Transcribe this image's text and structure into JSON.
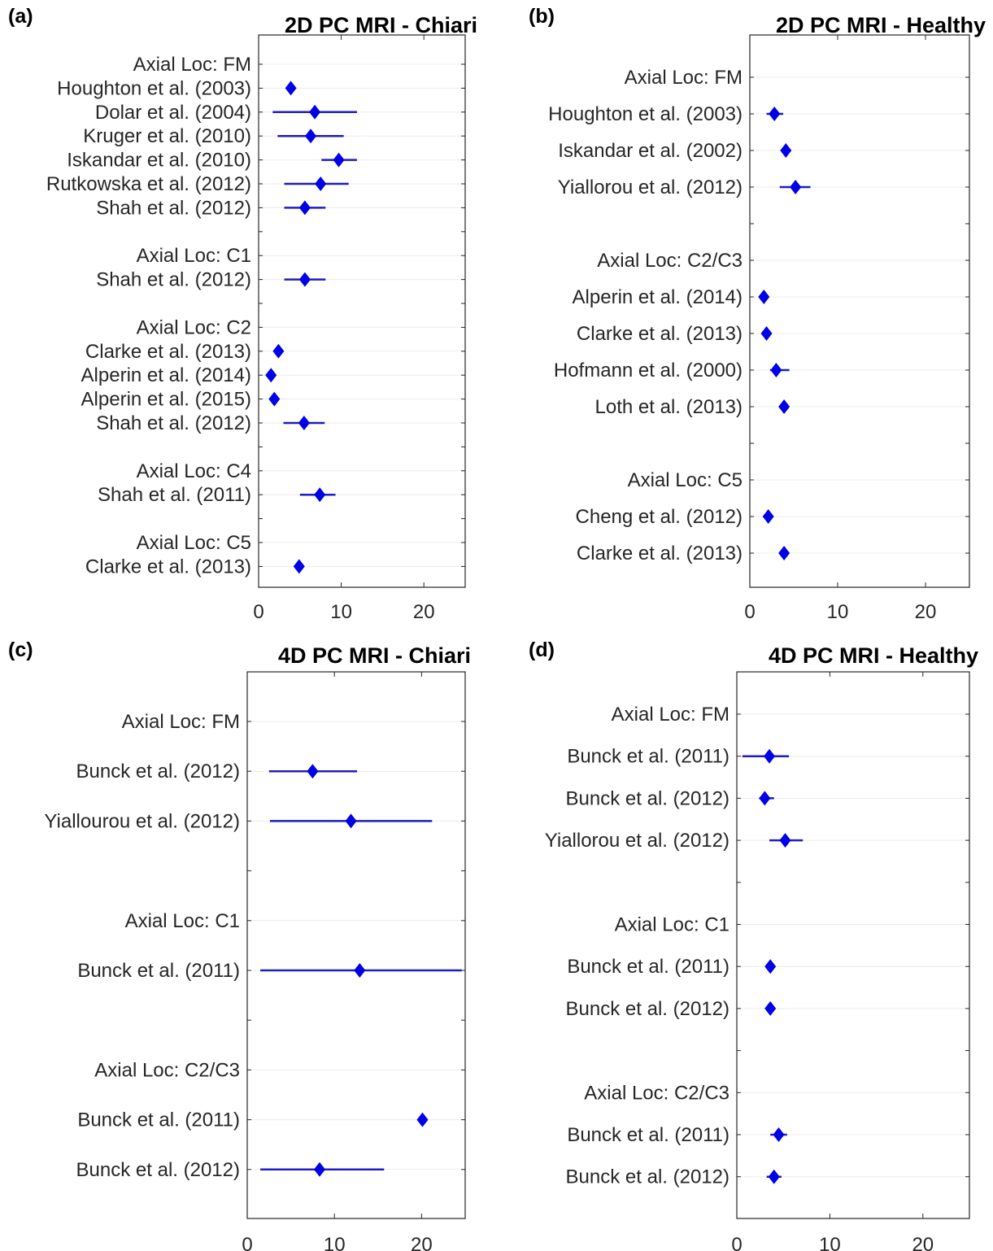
{
  "chart_data": [
    {
      "type": "forest",
      "panel_label": "(a)",
      "title": "2D PC MRI - Chiari",
      "xlim": [
        0,
        25
      ],
      "xticks": [
        "0",
        "10",
        "20"
      ],
      "grid": "horizontal",
      "marker_color": "#0000e6",
      "line_color": "#1d1dc4",
      "rows": [
        {
          "label": "Axial Loc: FM",
          "header": true
        },
        {
          "label": "Houghton et al. (2003)",
          "value": 3.9,
          "lo": 3.9,
          "hi": 3.9
        },
        {
          "label": "Dolar et al. (2004)",
          "value": 6.8,
          "lo": 1.7,
          "hi": 11.9
        },
        {
          "label": "Kruger et al. (2010)",
          "value": 6.3,
          "lo": 2.3,
          "hi": 10.3
        },
        {
          "label": "Iskandar et al. (2010)",
          "value": 9.7,
          "lo": 7.6,
          "hi": 11.9
        },
        {
          "label": "Rutkowska et al. (2012)",
          "value": 7.5,
          "lo": 3.1,
          "hi": 10.9
        },
        {
          "label": "Shah et al. (2012)",
          "value": 5.6,
          "lo": 3.1,
          "hi": 8.1
        },
        {
          "label": "",
          "spacer": true
        },
        {
          "label": "Axial Loc: C1",
          "header": true
        },
        {
          "label": "Shah et al. (2012)",
          "value": 5.6,
          "lo": 3.1,
          "hi": 8.1
        },
        {
          "label": "",
          "spacer": true
        },
        {
          "label": "Axial Loc: C2",
          "header": true
        },
        {
          "label": "Clarke et al. (2013)",
          "value": 2.4,
          "lo": 2.4,
          "hi": 2.4
        },
        {
          "label": "Alperin et al. (2014)",
          "value": 1.5,
          "lo": 1.5,
          "hi": 1.5
        },
        {
          "label": "Alperin et al. (2015)",
          "value": 1.9,
          "lo": 1.9,
          "hi": 1.9
        },
        {
          "label": "Shah et al. (2012)",
          "value": 5.5,
          "lo": 3.0,
          "hi": 8.0
        },
        {
          "label": "",
          "spacer": true
        },
        {
          "label": "Axial Loc: C4",
          "header": true
        },
        {
          "label": "Shah et al. (2011)",
          "value": 7.4,
          "lo": 5.0,
          "hi": 9.3
        },
        {
          "label": "",
          "spacer": true
        },
        {
          "label": "Axial Loc: C5",
          "header": true
        },
        {
          "label": "Clarke et al. (2013)",
          "value": 4.9,
          "lo": 4.9,
          "hi": 4.9
        }
      ]
    },
    {
      "type": "forest",
      "panel_label": "(b)",
      "title": "2D PC MRI - Healthy",
      "xlim": [
        0,
        25
      ],
      "xticks": [
        "0",
        "10",
        "20"
      ],
      "grid": "horizontal",
      "marker_color": "#0000e6",
      "line_color": "#1d1dc4",
      "rows": [
        {
          "label": "Axial Loc: FM",
          "header": true
        },
        {
          "label": "Houghton et al. (2003)",
          "value": 2.8,
          "lo": 1.9,
          "hi": 3.8
        },
        {
          "label": "Iskandar et al. (2002)",
          "value": 4.1,
          "lo": 4.1,
          "hi": 4.1
        },
        {
          "label": "Yiallorou et al. (2012)",
          "value": 5.2,
          "lo": 3.4,
          "hi": 6.9
        },
        {
          "label": "",
          "spacer": true
        },
        {
          "label": "Axial Loc: C2/C3",
          "header": true
        },
        {
          "label": "Alperin et al. (2014)",
          "value": 1.6,
          "lo": 1.6,
          "hi": 1.6
        },
        {
          "label": "Clarke et al. (2013)",
          "value": 1.9,
          "lo": 1.9,
          "hi": 1.9
        },
        {
          "label": "Hofmann et al. (2000)",
          "value": 3.0,
          "lo": 2.3,
          "hi": 4.5
        },
        {
          "label": "Loth et al. (2013)",
          "value": 3.9,
          "lo": 3.9,
          "hi": 3.9
        },
        {
          "label": "",
          "spacer": true
        },
        {
          "label": "Axial Loc: C5",
          "header": true
        },
        {
          "label": "Cheng et al. (2012)",
          "value": 2.1,
          "lo": 2.1,
          "hi": 2.1
        },
        {
          "label": "Clarke et al. (2013)",
          "value": 3.9,
          "lo": 3.9,
          "hi": 3.9
        }
      ]
    },
    {
      "type": "forest",
      "panel_label": "(c)",
      "title": "4D PC MRI - Chiari",
      "xlim": [
        0,
        25
      ],
      "xticks": [
        "0",
        "10",
        "20"
      ],
      "grid": "horizontal",
      "marker_color": "#0000e6",
      "line_color": "#1d1dc4",
      "rows": [
        {
          "label": "Axial Loc: FM",
          "header": true
        },
        {
          "label": "Bunck et al. (2012)",
          "value": 7.5,
          "lo": 2.5,
          "hi": 12.6
        },
        {
          "label": "Yiallourou et al. (2012)",
          "value": 11.9,
          "lo": 2.6,
          "hi": 21.2
        },
        {
          "label": "",
          "spacer": true
        },
        {
          "label": "Axial Loc: C1",
          "header": true
        },
        {
          "label": "Bunck et al. (2011)",
          "value": 12.9,
          "lo": 1.5,
          "hi": 24.6
        },
        {
          "label": "",
          "spacer": true
        },
        {
          "label": "Axial Loc: C2/C3",
          "header": true
        },
        {
          "label": "Bunck et al. (2011)",
          "value": 20.1,
          "lo": 20.1,
          "hi": 20.1
        },
        {
          "label": "Bunck et al. (2012)",
          "value": 8.3,
          "lo": 1.5,
          "hi": 15.7
        }
      ]
    },
    {
      "type": "forest",
      "panel_label": "(d)",
      "title": "4D PC MRI - Healthy",
      "xlim": [
        0,
        25
      ],
      "xticks": [
        "0",
        "10",
        "20"
      ],
      "grid": "horizontal",
      "marker_color": "#0000e6",
      "line_color": "#1d1dc4",
      "rows": [
        {
          "label": "Axial Loc: FM",
          "header": true
        },
        {
          "label": "Bunck et al. (2011)",
          "value": 3.5,
          "lo": 0.6,
          "hi": 5.6
        },
        {
          "label": "Bunck et al. (2012)",
          "value": 3.0,
          "lo": 2.4,
          "hi": 4.0
        },
        {
          "label": "Yiallorou et al. (2012)",
          "value": 5.2,
          "lo": 3.5,
          "hi": 7.1
        },
        {
          "label": "",
          "spacer": true
        },
        {
          "label": "Axial Loc: C1",
          "header": true
        },
        {
          "label": "Bunck et al. (2011)",
          "value": 3.6,
          "lo": 3.6,
          "hi": 3.6
        },
        {
          "label": "Bunck et al. (2012)",
          "value": 3.6,
          "lo": 3.6,
          "hi": 3.6
        },
        {
          "label": "",
          "spacer": true
        },
        {
          "label": "Axial Loc: C2/C3",
          "header": true
        },
        {
          "label": "Bunck et al. (2011)",
          "value": 4.5,
          "lo": 3.6,
          "hi": 5.4
        },
        {
          "label": "Bunck et al. (2012)",
          "value": 4.0,
          "lo": 3.2,
          "hi": 4.8
        }
      ]
    }
  ]
}
